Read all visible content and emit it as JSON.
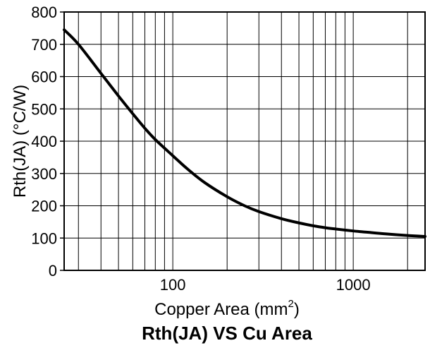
{
  "chart_data": {
    "type": "line",
    "title": "Rth(JA) VS Cu Area",
    "xlabel": "Copper Area (mm",
    "xlabel_superscript": "2",
    "xlabel_suffix": ")",
    "ylabel": "Rth(JA) (°C/W)",
    "x_scale": "log",
    "xlim": [
      25,
      2500
    ],
    "ylim": [
      0,
      800
    ],
    "grid": true,
    "x_ticks": [
      {
        "value": 100,
        "label": "100"
      },
      {
        "value": 1000,
        "label": "1000"
      }
    ],
    "y_ticks": [
      {
        "value": 0,
        "label": "0"
      },
      {
        "value": 100,
        "label": "100"
      },
      {
        "value": 200,
        "label": "200"
      },
      {
        "value": 300,
        "label": "300"
      },
      {
        "value": 400,
        "label": "400"
      },
      {
        "value": 500,
        "label": "500"
      },
      {
        "value": 600,
        "label": "600"
      },
      {
        "value": 700,
        "label": "700"
      },
      {
        "value": 800,
        "label": "800"
      }
    ],
    "series": [
      {
        "color": "#000000",
        "x": [
          25,
          30,
          40,
          50,
          60,
          70,
          80,
          100,
          120,
          150,
          200,
          250,
          300,
          400,
          500,
          600,
          700,
          800,
          1000,
          1200,
          1500,
          2000,
          2500
        ],
        "y": [
          745,
          700,
          610,
          540,
          485,
          440,
          405,
          355,
          315,
          272,
          228,
          200,
          182,
          160,
          147,
          138,
          132,
          128,
          122,
          118,
          113,
          108,
          105
        ]
      }
    ]
  }
}
